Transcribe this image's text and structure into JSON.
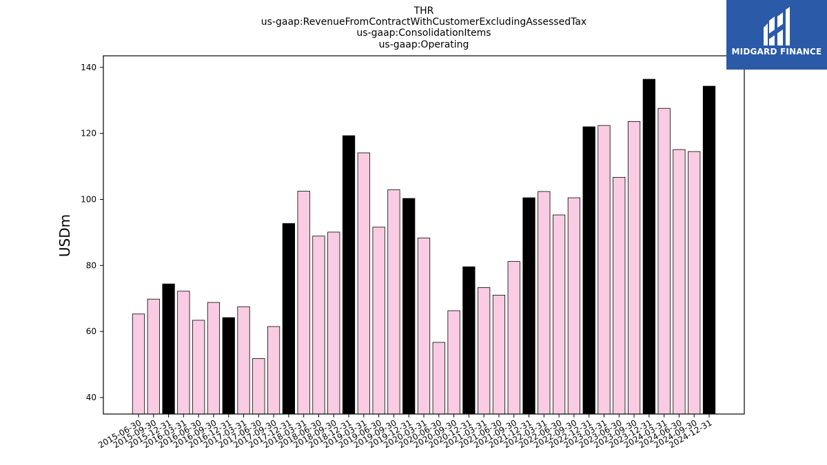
{
  "title_lines": [
    "THR",
    "us-gaap:RevenueFromContractWithCustomerExcludingAssessedTax",
    "us-gaap:ConsolidationItems",
    "us-gaap:Operating"
  ],
  "logo": {
    "text": "MIDGARD FINANCE",
    "color": "#2a5aa8"
  },
  "chart_data": {
    "type": "bar",
    "title": "THR us-gaap:RevenueFromContractWithCustomerExcludingAssessedTax us-gaap:ConsolidationItems us-gaap:Operating",
    "xlabel": "",
    "ylabel": "USDm",
    "ylim": [
      35,
      143.5
    ],
    "yticks": [
      40,
      60,
      80,
      100,
      120,
      140
    ],
    "grid": false,
    "colors": {
      "quarter": "#f9cce3",
      "year_end": "#000000",
      "edge": "#000000"
    },
    "categories": [
      "2015-06-30",
      "2015-09-30",
      "2015-12-31",
      "2016-03-31",
      "2016-06-30",
      "2016-09-30",
      "2016-12-31",
      "2017-03-31",
      "2017-06-30",
      "2017-09-30",
      "2017-12-31",
      "2018-03-31",
      "2018-06-30",
      "2018-09-30",
      "2018-12-31",
      "2019-03-31",
      "2019-06-30",
      "2019-09-30",
      "2019-12-31",
      "2020-03-31",
      "2020-06-30",
      "2020-09-30",
      "2020-12-31",
      "2021-03-31",
      "2021-06-30",
      "2021-09-30",
      "2021-12-31",
      "2022-03-31",
      "2022-06-30",
      "2022-09-30",
      "2022-12-31",
      "2023-03-31",
      "2023-06-30",
      "2023-09-30",
      "2023-12-31",
      "2024-03-31",
      "2024-06-30",
      "2024-09-30",
      "2024-12-31"
    ],
    "values": [
      65.3,
      69.8,
      74.4,
      72.2,
      63.4,
      68.8,
      64.2,
      67.5,
      51.8,
      61.5,
      92.7,
      102.5,
      88.9,
      90.1,
      119.3,
      114.1,
      91.6,
      102.9,
      100.3,
      88.3,
      56.7,
      66.3,
      79.6,
      73.3,
      71.0,
      81.2,
      100.5,
      102.4,
      95.3,
      100.5,
      122.0,
      122.4,
      106.7,
      123.6,
      136.4,
      127.6,
      115.1,
      114.5,
      134.3
    ],
    "highlight": [
      false,
      false,
      true,
      false,
      false,
      false,
      true,
      false,
      false,
      false,
      true,
      false,
      false,
      false,
      true,
      false,
      false,
      false,
      true,
      false,
      false,
      false,
      true,
      false,
      false,
      false,
      true,
      false,
      false,
      false,
      true,
      false,
      false,
      false,
      true,
      false,
      false,
      false,
      true
    ]
  }
}
